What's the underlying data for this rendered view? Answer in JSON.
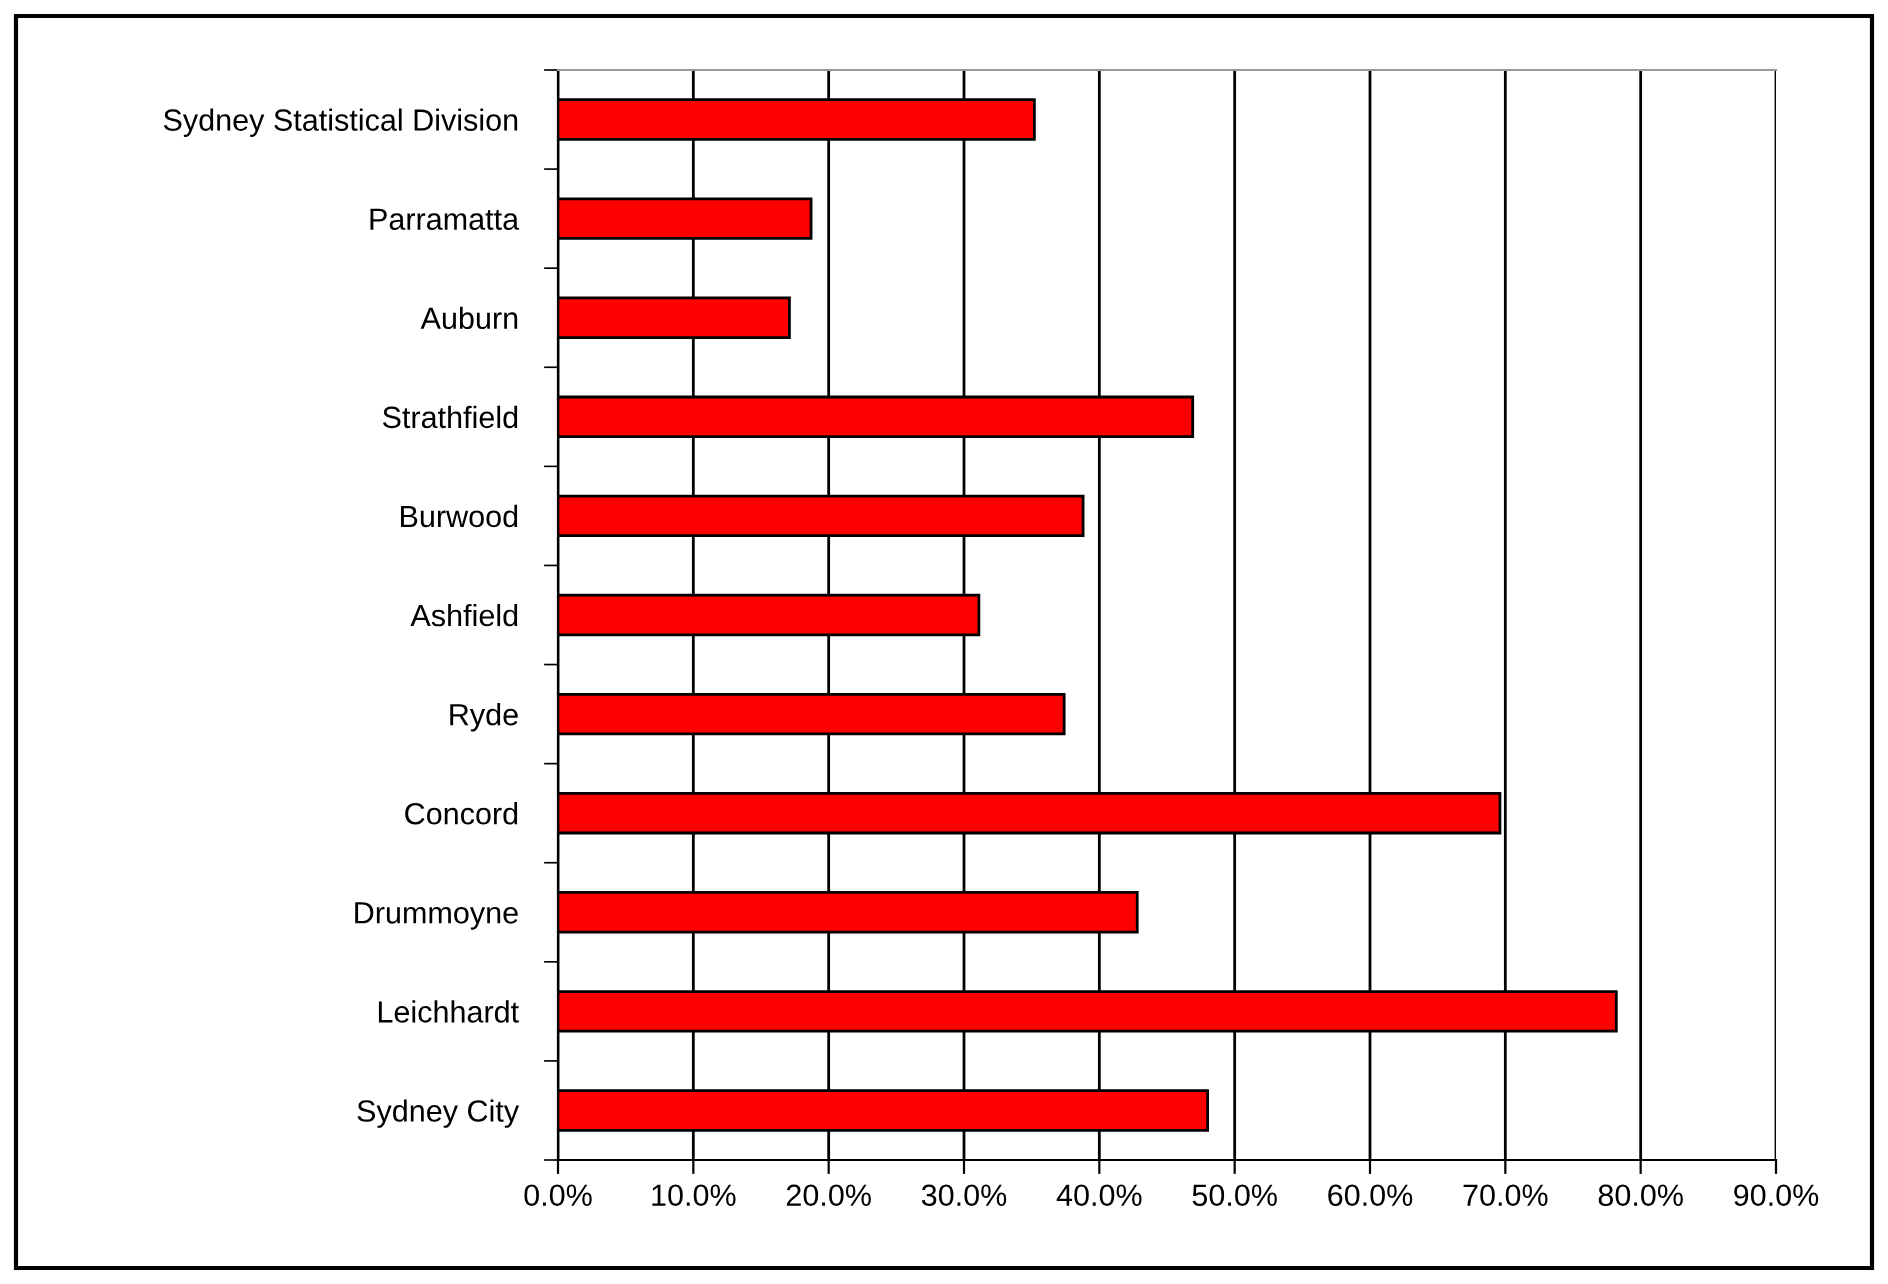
{
  "chart_data": {
    "type": "bar",
    "orientation": "horizontal",
    "categories": [
      "Sydney Statistical Division",
      "Parramatta",
      "Auburn",
      "Strathfield",
      "Burwood",
      "Ashfield",
      "Ryde",
      "Concord",
      "Drummoyne",
      "Leichhardt",
      "Sydney City"
    ],
    "values": [
      35.2,
      18.7,
      17.1,
      46.9,
      38.8,
      31.1,
      37.4,
      69.6,
      42.8,
      78.2,
      48.0
    ],
    "color": "#ff0000",
    "xlim": [
      0,
      90
    ],
    "xticks": [
      {
        "value": 0,
        "label": "0.0%"
      },
      {
        "value": 10,
        "label": "10.0%"
      },
      {
        "value": 20,
        "label": "20.0%"
      },
      {
        "value": 30,
        "label": "30.0%"
      },
      {
        "value": 40,
        "label": "40.0%"
      },
      {
        "value": 50,
        "label": "50.0%"
      },
      {
        "value": 60,
        "label": "60.0%"
      },
      {
        "value": 70,
        "label": "70.0%"
      },
      {
        "value": 80,
        "label": "80.0%"
      },
      {
        "value": 90,
        "label": "90.0%"
      }
    ],
    "grid": "x",
    "legend": false
  }
}
